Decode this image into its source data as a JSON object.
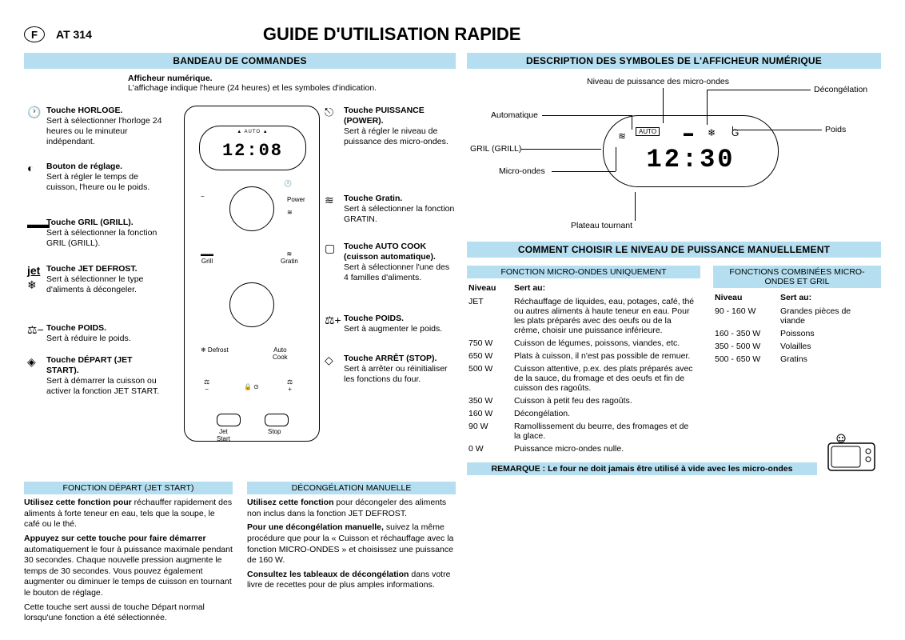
{
  "header": {
    "badge": "F",
    "model": "AT 314",
    "title": "GUIDE D'UTILISATION RAPIDE"
  },
  "left": {
    "section_title": "BANDEAU DE COMMANDES",
    "display_note_bold": "Afficheur numérique.",
    "display_note_text": "L'affichage indique l'heure (24 heures) et les symboles d'indication.",
    "lcd_time": "12:08",
    "callouts_left": [
      {
        "title": "Touche HORLOGE.",
        "text": "Sert à sélectionner l'horloge 24 heures ou le minuteur indépendant."
      },
      {
        "title": "Bouton de réglage.",
        "text": "Sert à régler le temps de cuisson, l'heure ou le poids."
      },
      {
        "title": "Touche GRIL (GRILL).",
        "text": "Sert à sélectionner la fonction GRIL (GRILL)."
      },
      {
        "title": "Touche JET DEFROST.",
        "text": "Sert à sélectionner le type d'aliments à décongeler."
      },
      {
        "title": "Touche POIDS.",
        "text": "Sert à réduire le poids."
      },
      {
        "title": "Touche DÉPART (JET START).",
        "text": "Sert à démarrer la cuisson ou activer la fonction JET START."
      }
    ],
    "callouts_right": [
      {
        "title": "Touche PUISSANCE (POWER).",
        "text": "Sert à régler le niveau de puissance des micro-ondes."
      },
      {
        "title": "Touche Gratin.",
        "text": "Sert à sélectionner la fonction GRATIN."
      },
      {
        "title": "Touche AUTO COOK (cuisson automatique).",
        "text": "Sert à sélectionner l'une des 4 familles d'aliments."
      },
      {
        "title": "Touche POIDS.",
        "text": "Sert à augmenter le poids."
      },
      {
        "title": "Touche ARRÊT (STOP).",
        "text": "Sert à arrêter ou réinitialiser les fonctions du four."
      }
    ],
    "jet_title": "FONCTION DÉPART (JET START)",
    "jet_p1_b": "Utilisez cette fonction pour",
    "jet_p1": " réchauffer rapidement des aliments à forte teneur en eau, tels que la soupe, le café ou le thé.",
    "jet_p2_b": "Appuyez sur cette touche pour faire démarrer",
    "jet_p2": " automatiquement le four à puissance maximale pendant 30 secondes. Chaque nouvelle pression augmente le temps de 30 secondes. Vous pouvez également augmenter ou diminuer le temps de cuisson en tournant le bouton de réglage.",
    "jet_p3": "Cette touche sert aussi de touche Départ normal lorsqu'une fonction a été sélectionnée.",
    "defrost_title": "DÉCONGÉLATION MANUELLE",
    "def_p1_b": "Utilisez cette fonction",
    "def_p1": " pour décongeler des aliments non inclus dans la fonction JET DEFROST.",
    "def_p2_b": "Pour une décongélation manuelle,",
    "def_p2": " suivez la même procédure que pour la « Cuisson et réchauffage avec la fonction MICRO-ONDES » et choisissez une puissance de 160 W.",
    "def_p3_b": "Consultez les tableaux de décongélation",
    "def_p3": " dans votre livre de recettes pour de plus amples informations."
  },
  "right": {
    "section1_title": "DESCRIPTION DES SYMBOLES DE L'AFFICHEUR NUMÉRIQUE",
    "dd_time": "12:30",
    "dd_auto": "AUTO",
    "labels": {
      "power": "Niveau de puissance des micro-ondes",
      "auto": "Automatique",
      "grill": "GRIL (GRILL)",
      "micro": "Micro-ondes",
      "turntable": "Plateau tournant",
      "defrost": "Décongélation",
      "weight": "Poids"
    },
    "section2_title": "COMMENT CHOISIR LE NIVEAU DE PUISSANCE MANUELLEMENT",
    "tbl1_title": "FONCTION MICRO-ONDES UNIQUEMENT",
    "tbl1_h1": "Niveau",
    "tbl1_h2": "Sert au:",
    "tbl1": [
      {
        "lv": "JET",
        "txt": "Réchauffage de liquides, eau, potages, café, thé ou autres aliments à haute teneur en eau. Pour les plats préparés avec des oeufs ou de la crème, choisir une puissance inférieure."
      },
      {
        "lv": "750 W",
        "txt": "Cuisson de légumes, poissons, viandes, etc."
      },
      {
        "lv": "650 W",
        "txt": "Plats à cuisson, il n'est pas possible de remuer."
      },
      {
        "lv": "500 W",
        "txt": "Cuisson attentive, p.ex. des plats préparés avec de la sauce, du fromage et des oeufs et fin de cuisson des ragoûts."
      },
      {
        "lv": "350 W",
        "txt": "Cuisson à petit feu des ragoûts."
      },
      {
        "lv": "160 W",
        "txt": "Décongélation."
      },
      {
        "lv": "90 W",
        "txt": "Ramollissement du beurre, des fromages et de la glace."
      },
      {
        "lv": "0 W",
        "txt": "Puissance micro-ondes nulle."
      }
    ],
    "tbl2_title": "FONCTIONS COMBINÉES MICRO-ONDES ET GRIL",
    "tbl2_h1": "Niveau",
    "tbl2_h2": "Sert au:",
    "tbl2": [
      {
        "lv": "90 - 160 W",
        "txt": "Grandes pièces de viande"
      },
      {
        "lv": "160 - 350 W",
        "txt": "Poissons"
      },
      {
        "lv": "350 - 500 W",
        "txt": "Volailles"
      },
      {
        "lv": "500 - 650 W",
        "txt": "Gratins"
      }
    ],
    "remark": "REMARQUE : Le four ne doit jamais être utilisé à vide avec les micro-ondes"
  },
  "colors": {
    "bar_bg": "#b5dff0",
    "page_bg": "#ffffff",
    "text": "#000000"
  }
}
